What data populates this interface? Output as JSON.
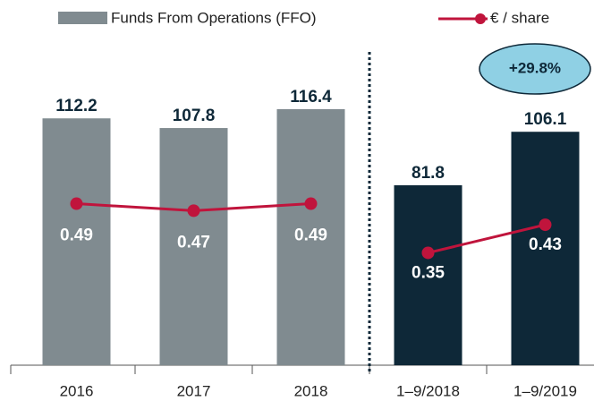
{
  "chart_data": {
    "type": "bar_line",
    "categories": [
      "2016",
      "2017",
      "2018",
      "1–9/2018",
      "1–9/2019"
    ],
    "series": [
      {
        "name": "Funds From Operations (FFO)",
        "type": "bar",
        "color": "#808b90",
        "colors": [
          "#808b90",
          "#808b90",
          "#808b90",
          "#0e2838",
          "#0e2838"
        ],
        "values": [
          112.2,
          107.8,
          116.4,
          81.8,
          106.1
        ]
      },
      {
        "name": "€ / share",
        "type": "line",
        "axis": "y2",
        "color": "#c0143c",
        "values": [
          0.49,
          0.47,
          0.49,
          0.35,
          0.43
        ]
      }
    ],
    "ylim": [
      0,
      166
    ],
    "y2lim": [
      0.03,
      1.07
    ],
    "divider_index": 3,
    "annotation": "+29.8%"
  }
}
